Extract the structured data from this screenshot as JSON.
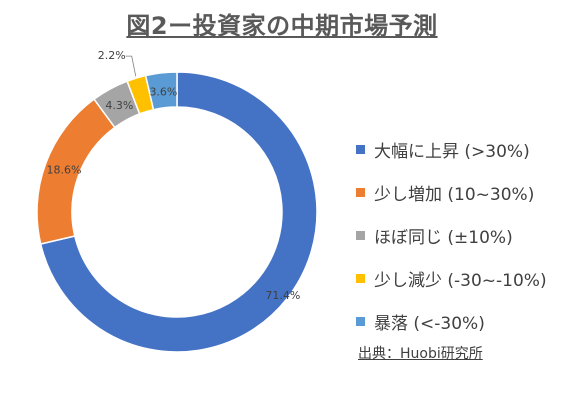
{
  "title": "図2ー投資家の中期市場予測",
  "source": "出典：Huobi研究所",
  "chart_data": {
    "type": "pie",
    "donut": true,
    "legend_position": "right",
    "slices": [
      {
        "label": "大幅に上昇 (>30%)",
        "value": 71.4,
        "value_label": "71.4%",
        "color": "#4472C4"
      },
      {
        "label": "少し増加 (10~30%)",
        "value": 18.6,
        "value_label": "18.6%",
        "color": "#ED7D31"
      },
      {
        "label": "ほぼ同じ (±10%)",
        "value": 4.3,
        "value_label": "4.3%",
        "color": "#A5A5A5"
      },
      {
        "label": "少し減少 (-30~-10%)",
        "value": 2.2,
        "value_label": "2.2%",
        "color": "#FFC000"
      },
      {
        "label": "暴落 (<-30%)",
        "value": 3.6,
        "value_label": "3.6%",
        "color": "#5B9BD5"
      }
    ]
  }
}
